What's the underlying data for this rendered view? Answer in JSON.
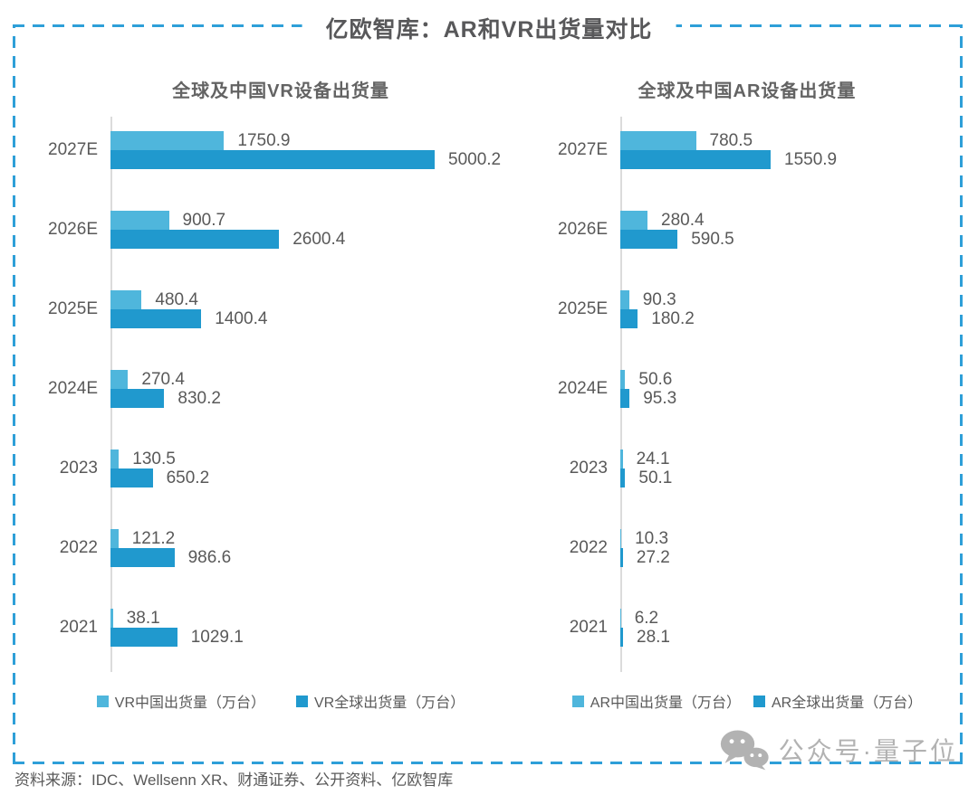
{
  "page": {
    "title": "亿欧智库：AR和VR出货量对比",
    "source": "资料来源：IDC、Wellsenn XR、财通证券、公开资料、亿欧智库",
    "watermark": "公众号·量子位"
  },
  "colors": {
    "china": "#4fb6dc",
    "global": "#2099ce",
    "border": "#2e9fd8",
    "text": "#595959",
    "axis": "#dbdbdb",
    "watermark": "#b2b2b2"
  },
  "chart_data": [
    {
      "type": "bar",
      "orientation": "horizontal",
      "title": "全球及中国VR设备出货量",
      "categories": [
        "2027E",
        "2026E",
        "2025E",
        "2024E",
        "2023",
        "2022",
        "2021"
      ],
      "series": [
        {
          "key": "vr-china",
          "name": "VR中国出货量（万台）",
          "color_key": "china",
          "values": [
            1750.9,
            900.7,
            480.4,
            270.4,
            130.5,
            121.2,
            38.1
          ]
        },
        {
          "key": "vr-global",
          "name": "VR全球出货量（万台）",
          "color_key": "global",
          "values": [
            5000.2,
            2600.4,
            1400.4,
            830.2,
            650.2,
            986.6,
            1029.1
          ]
        }
      ],
      "xlim": [
        0,
        5000.2
      ],
      "value_labels": true,
      "grid": false,
      "legend_position": "bottom"
    },
    {
      "type": "bar",
      "orientation": "horizontal",
      "title": "全球及中国AR设备出货量",
      "categories": [
        "2027E",
        "2026E",
        "2025E",
        "2024E",
        "2023",
        "2022",
        "2021"
      ],
      "series": [
        {
          "key": "ar-china",
          "name": "AR中国出货量（万台）",
          "color_key": "china",
          "values": [
            780.5,
            280.4,
            90.3,
            50.6,
            24.1,
            10.3,
            6.2
          ]
        },
        {
          "key": "ar-global",
          "name": "AR全球出货量（万台）",
          "color_key": "global",
          "values": [
            1550.9,
            590.5,
            180.2,
            95.3,
            50.1,
            27.2,
            28.1
          ]
        }
      ],
      "xlim": [
        0,
        1550.9
      ],
      "value_labels": true,
      "grid": false,
      "legend_position": "bottom"
    }
  ]
}
